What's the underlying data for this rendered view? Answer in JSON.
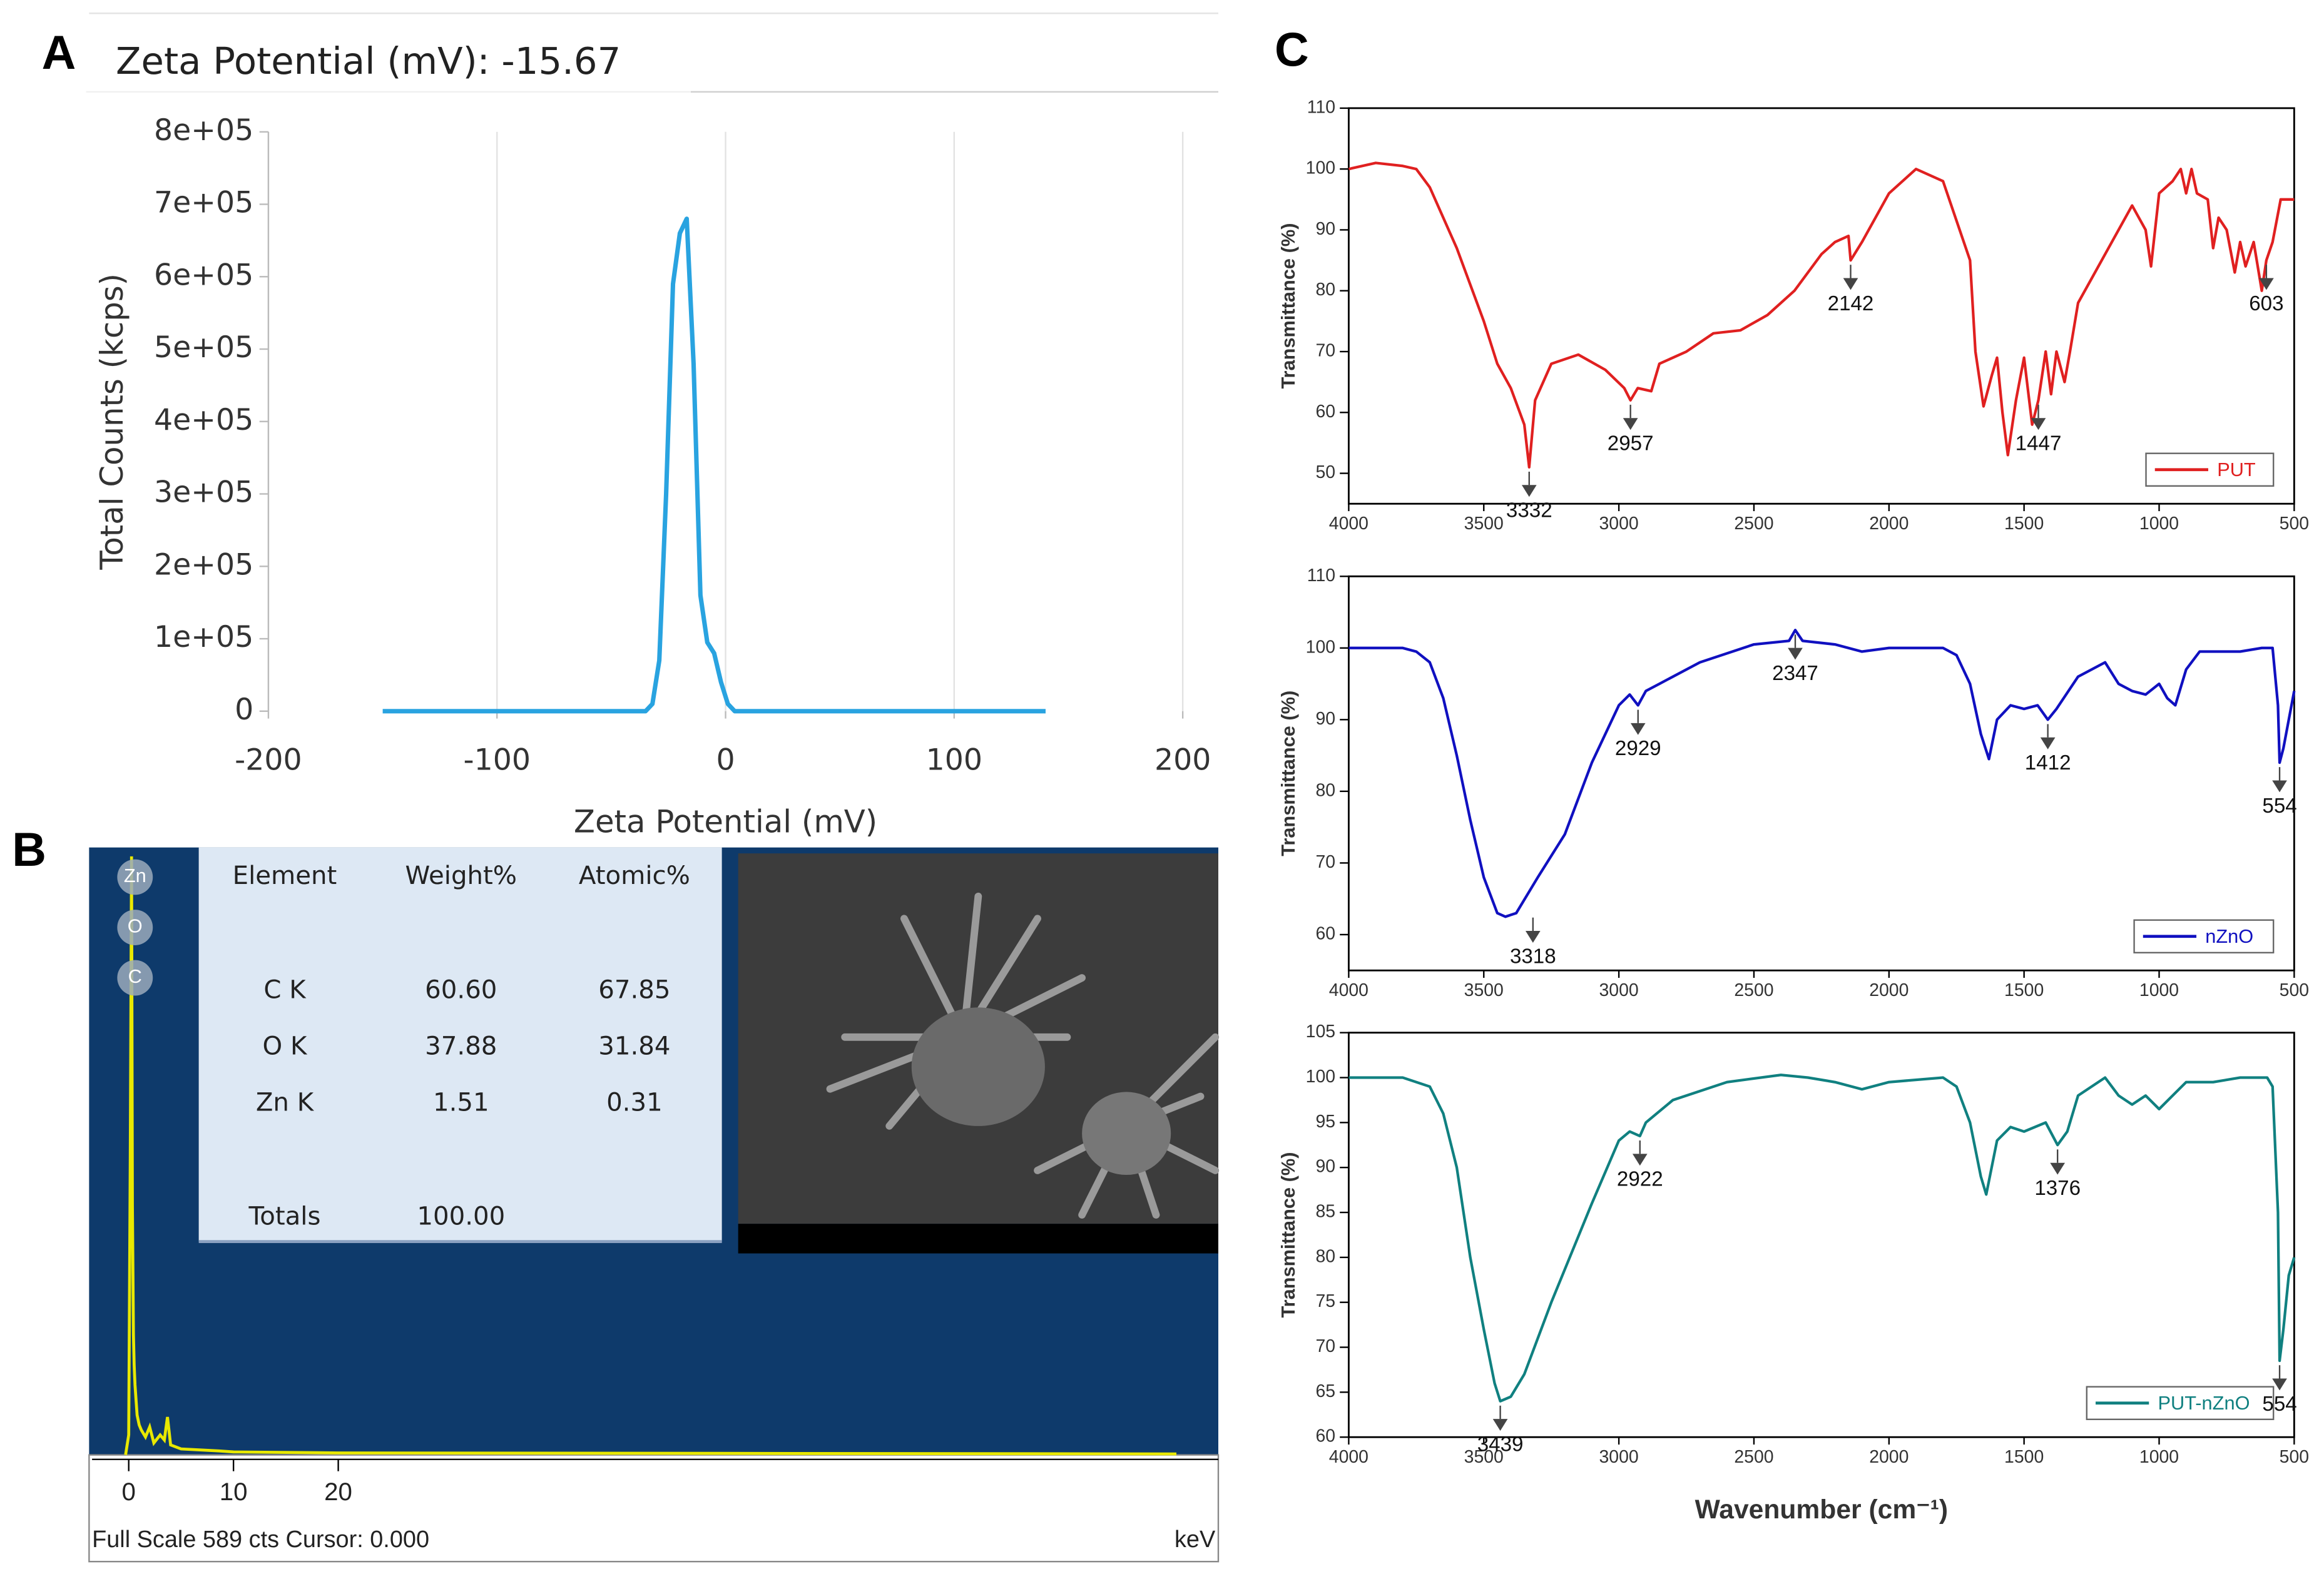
{
  "panel_labels": [
    "A",
    "B",
    "C"
  ],
  "chart_data": [
    {
      "type": "line",
      "title": "Zeta Potential (mV): -15.67",
      "xlabel": "Zeta Potential (mV)",
      "ylabel": "Total Counts (kcps)",
      "x": [
        -150,
        -35,
        -32,
        -29,
        -26,
        -23,
        -20,
        -17,
        -14,
        -11,
        -8,
        -5,
        -2,
        1,
        4,
        140
      ],
      "values": [
        0,
        0,
        10000,
        70000,
        300000,
        590000,
        660000,
        680000,
        480000,
        160000,
        95000,
        80000,
        40000,
        10000,
        0,
        0
      ],
      "color": "#29a3e0",
      "grid": true,
      "xlim": [
        -200,
        200
      ],
      "xticks": [
        -200,
        -100,
        0,
        100,
        200
      ],
      "ylim": [
        0,
        800000
      ],
      "yticks": [
        0,
        {
          "value": 100000,
          "label": "1e+05"
        },
        {
          "value": 200000,
          "label": "2e+05"
        },
        {
          "value": 300000,
          "label": "3e+05"
        },
        {
          "value": 400000,
          "label": "4e+05"
        },
        {
          "value": 500000,
          "label": "5e+05"
        },
        {
          "value": 600000,
          "label": "6e+05"
        },
        {
          "value": 700000,
          "label": "7e+05"
        },
        {
          "value": 800000,
          "label": "8e+05"
        }
      ]
    },
    {
      "type": "spectrum",
      "xlabel": "keV",
      "footer": "Full Scale 589 cts Cursor: 0.000",
      "peak_labels": [
        "Zn",
        "O",
        "C"
      ],
      "x": [
        -0.3,
        0,
        0.15,
        0.27,
        0.35,
        0.45,
        0.52,
        0.6,
        0.8,
        1.0,
        1.2,
        1.6,
        2.0,
        2.4,
        3.0,
        3.4,
        3.7,
        4.0,
        5,
        8.6,
        10,
        20,
        100
      ],
      "values": [
        0,
        20,
        300,
        600,
        250,
        120,
        90,
        70,
        40,
        30,
        25,
        18,
        28,
        12,
        20,
        15,
        38,
        10,
        6,
        4,
        3,
        2,
        1
      ],
      "color": "#e8e800",
      "xlim": [
        -3.5,
        104
      ],
      "xticks": [
        0,
        10,
        20
      ],
      "ylim": [
        0,
        600
      ]
    },
    {
      "type": "line",
      "ylabel": "Transmittance (%)",
      "xlim": [
        4000,
        500
      ],
      "xticks": [
        4000,
        3500,
        3000,
        2500,
        2000,
        1500,
        1000,
        500
      ],
      "ylim": [
        45,
        110
      ],
      "yticks": [
        50,
        60,
        70,
        80,
        90,
        100,
        110
      ],
      "x": [
        4000,
        3900,
        3800,
        3750,
        3700,
        3600,
        3500,
        3450,
        3400,
        3350,
        3332,
        3310,
        3250,
        3150,
        3050,
        2980,
        2957,
        2930,
        2880,
        2850,
        2750,
        2650,
        2550,
        2450,
        2350,
        2250,
        2200,
        2150,
        2142,
        2100,
        2000,
        1900,
        1800,
        1700,
        1680,
        1650,
        1620,
        1600,
        1580,
        1560,
        1530,
        1500,
        1470,
        1447,
        1420,
        1400,
        1380,
        1350,
        1330,
        1300,
        1250,
        1200,
        1150,
        1100,
        1050,
        1030,
        1000,
        950,
        920,
        900,
        880,
        860,
        820,
        800,
        780,
        750,
        720,
        700,
        680,
        650,
        620,
        603,
        580,
        550,
        500
      ],
      "series": [
        {
          "name": "PUT",
          "color": "#e02020",
          "values": [
            100,
            101,
            100.5,
            100,
            97,
            87,
            75,
            68,
            64,
            58,
            51,
            62,
            68,
            69.5,
            67,
            64,
            62,
            64,
            63.5,
            68,
            70,
            73,
            73.5,
            76,
            80,
            86,
            88,
            89,
            85,
            88,
            96,
            100,
            98,
            85,
            70,
            61,
            66,
            69,
            60,
            53,
            62,
            69,
            58,
            62,
            70,
            63,
            70,
            65,
            70,
            78,
            82,
            86,
            90,
            94,
            90,
            84,
            96,
            98,
            100,
            96,
            100,
            96,
            95,
            87,
            92,
            90,
            83,
            88,
            84,
            88,
            80,
            85,
            88,
            95,
            95
          ]
        }
      ],
      "annotations": [
        {
          "label": "3332",
          "x": 3332,
          "y": 51
        },
        {
          "label": "2957",
          "x": 2957,
          "y": 62
        },
        {
          "label": "2142",
          "x": 2142,
          "y": 85
        },
        {
          "label": "1447",
          "x": 1447,
          "y": 62
        },
        {
          "label": "603",
          "x": 603,
          "y": 85
        }
      ]
    },
    {
      "type": "line",
      "ylabel": "Transmittance (%)",
      "xlim": [
        4000,
        500
      ],
      "xticks": [
        4000,
        3500,
        3000,
        2500,
        2000,
        1500,
        1000,
        500
      ],
      "ylim": [
        55,
        110
      ],
      "yticks": [
        60,
        70,
        80,
        90,
        100,
        110
      ],
      "x": [
        4000,
        3800,
        3750,
        3700,
        3650,
        3600,
        3550,
        3500,
        3450,
        3420,
        3380,
        3300,
        3200,
        3100,
        3000,
        2960,
        2929,
        2900,
        2850,
        2700,
        2500,
        2370,
        2347,
        2320,
        2200,
        2100,
        2000,
        1800,
        1750,
        1700,
        1660,
        1630,
        1600,
        1550,
        1500,
        1450,
        1412,
        1380,
        1300,
        1200,
        1150,
        1100,
        1050,
        1000,
        970,
        940,
        900,
        850,
        700,
        620,
        580,
        560,
        554,
        540,
        520,
        500
      ],
      "series": [
        {
          "name": "nZnO",
          "color": "#1010c0",
          "values": [
            100,
            100,
            99.5,
            98,
            93,
            85,
            76,
            68,
            63,
            62.5,
            63,
            68,
            74,
            84,
            92,
            93.5,
            92,
            94,
            95,
            98,
            100.5,
            101,
            102.5,
            101,
            100.5,
            99.5,
            100,
            100,
            99,
            95,
            88,
            84.5,
            90,
            92,
            91.5,
            92,
            90,
            91.5,
            96,
            98,
            95,
            94,
            93.5,
            95,
            93,
            92,
            97,
            99.5,
            99.5,
            100,
            100,
            92,
            84,
            86,
            90,
            94
          ]
        }
      ],
      "annotations": [
        {
          "label": "3318",
          "x": 3318,
          "y": 63
        },
        {
          "label": "2929",
          "x": 2929,
          "y": 92
        },
        {
          "label": "2347",
          "x": 2347,
          "y": 102.5
        },
        {
          "label": "1412",
          "x": 1412,
          "y": 90
        },
        {
          "label": "554",
          "x": 554,
          "y": 84
        }
      ]
    },
    {
      "type": "line",
      "ylabel": "Transmittance (%)",
      "xlabel": "Wavenumber (cm⁻¹)",
      "xlim": [
        4000,
        500
      ],
      "xticks": [
        4000,
        3500,
        3000,
        2500,
        2000,
        1500,
        1000,
        500
      ],
      "ylim": [
        60,
        105
      ],
      "yticks": [
        60,
        65,
        70,
        75,
        80,
        85,
        90,
        95,
        100,
        105
      ],
      "x": [
        4000,
        3800,
        3700,
        3650,
        3600,
        3550,
        3500,
        3460,
        3439,
        3400,
        3350,
        3250,
        3100,
        3000,
        2960,
        2922,
        2900,
        2800,
        2600,
        2400,
        2300,
        2200,
        2100,
        2000,
        1800,
        1750,
        1700,
        1660,
        1640,
        1600,
        1550,
        1500,
        1420,
        1376,
        1340,
        1300,
        1200,
        1150,
        1100,
        1050,
        1000,
        950,
        900,
        800,
        700,
        600,
        580,
        560,
        554,
        540,
        520,
        500
      ],
      "series": [
        {
          "name": "PUT-nZnO",
          "color": "#108080",
          "values": [
            100,
            100,
            99,
            96,
            90,
            80,
            72,
            66,
            64,
            64.5,
            67,
            75,
            86,
            93,
            94,
            93.5,
            95,
            97.5,
            99.5,
            100.3,
            100,
            99.5,
            98.7,
            99.5,
            100,
            99,
            95,
            89,
            87,
            93,
            94.5,
            94,
            95,
            92.5,
            94,
            98,
            100,
            98,
            97,
            98,
            96.5,
            98,
            99.5,
            99.5,
            100,
            100,
            99,
            85,
            68.5,
            72,
            78,
            80
          ]
        }
      ],
      "annotations": [
        {
          "label": "3439",
          "x": 3439,
          "y": 64
        },
        {
          "label": "2922",
          "x": 2922,
          "y": 93.5
        },
        {
          "label": "1376",
          "x": 1376,
          "y": 92.5
        },
        {
          "label": "554",
          "x": 554,
          "y": 68.5
        }
      ]
    }
  ],
  "eds_table": {
    "columns": [
      "Element",
      "Weight%",
      "Atomic%"
    ],
    "rows": [
      [
        "C K",
        "60.60",
        "67.85"
      ],
      [
        "O K",
        "37.88",
        "31.84"
      ],
      [
        "Zn K",
        "1.51",
        "0.31"
      ]
    ],
    "totals": [
      "Totals",
      "100.00"
    ]
  }
}
